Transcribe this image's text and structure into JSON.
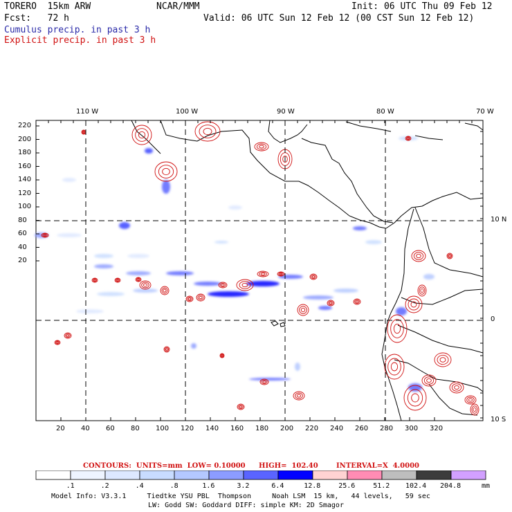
{
  "header": {
    "model": "TORERO  15km ARW",
    "org": "NCAR/MMM",
    "init": "Init: 06 UTC Thu 09 Feb 12",
    "fcst": "Fcst:   72 h",
    "valid": "Valid: 06 UTC Sun 12 Feb 12 (00 CST Sun 12 Feb 12)",
    "legend_cumulus": "Cumulus precip. in past 3 h",
    "legend_explicit": "Explicit precip. in past 3 h"
  },
  "colors": {
    "cumulus": "#2a2aa8",
    "explicit": "#d01010",
    "coast": "#000000"
  },
  "map": {
    "top_lon_labels": [
      "110 W",
      "100 W",
      "90 W",
      "80 W",
      "70 W"
    ],
    "right_lat_labels": [
      "10 N",
      "0",
      "10 S"
    ],
    "y_ticks": [
      "220",
      "200",
      "180",
      "160",
      "140",
      "120",
      "100",
      "80",
      "60",
      "40",
      "20"
    ],
    "x_ticks": [
      "20",
      "40",
      "60",
      "80",
      "100",
      "120",
      "140",
      "160",
      "180",
      "200",
      "220",
      "240",
      "260",
      "280",
      "300",
      "320"
    ]
  },
  "contours_line": {
    "label": "CONTOURS:  UNITS=mm  LOW= 0.10000",
    "high": "HIGH=  102.40",
    "interval": "INTERVAL=X  4.0000"
  },
  "colorbar": {
    "labels": [
      ".1",
      ".2",
      ".4",
      ".8",
      "1.6",
      "3.2",
      "6.4",
      "12.8",
      "25.6",
      "51.2",
      "102.4",
      "204.8"
    ],
    "unit": "mm",
    "colors": [
      "#ffffff",
      "#eef4ff",
      "#dde8ff",
      "#c8dcff",
      "#b4c8ff",
      "#8c9cff",
      "#5a64ff",
      "#0000ff",
      "#ffd2d2",
      "#ff8cb4",
      "#bebebe",
      "#3c3c3c",
      "#d2a0ff"
    ]
  },
  "footer": {
    "line1": "Model Info: V3.3.1     Tiedtke YSU PBL  Thompson     Noah LSM  15 km,   44 levels,   59 sec",
    "line2": "LW: Godd SW: Goddard DIFF: simple KM: 2D Smagor"
  }
}
